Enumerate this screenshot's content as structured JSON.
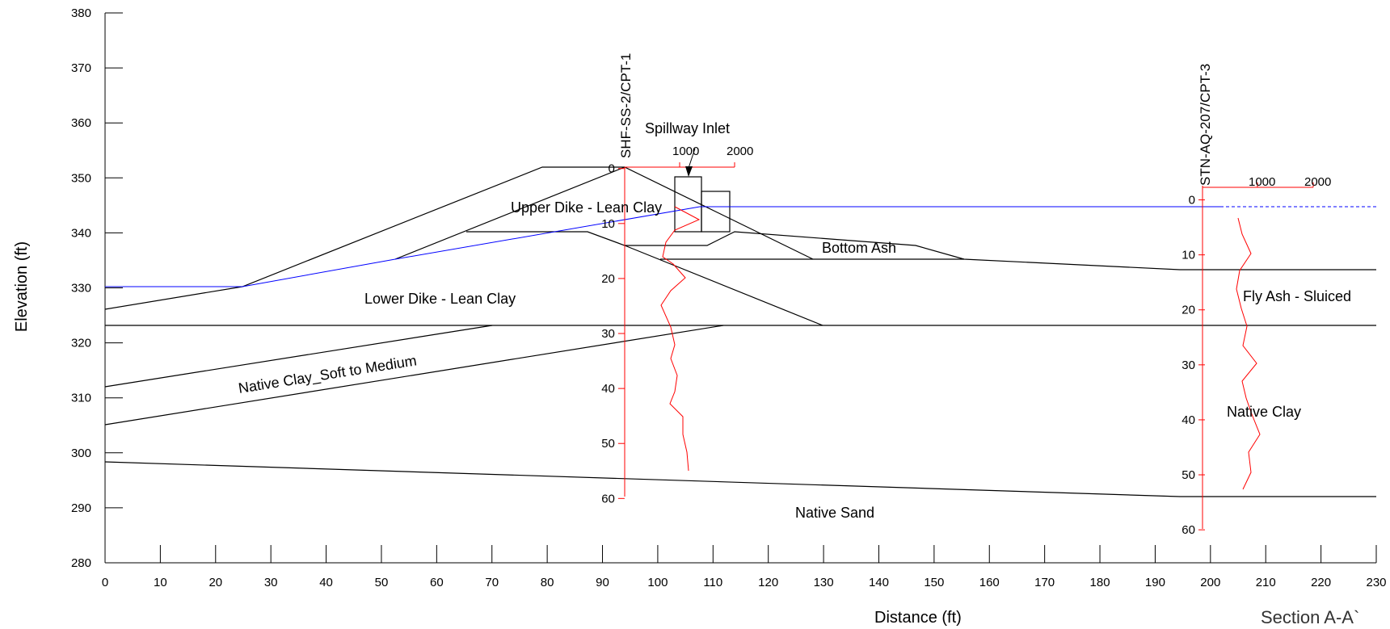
{
  "figure": {
    "section_title": "Section A-A`",
    "x_label": "Distance (ft)",
    "y_label": "Elevation (ft)",
    "x_ticks": [
      "0",
      "10",
      "20",
      "30",
      "40",
      "50",
      "60",
      "70",
      "80",
      "90",
      "100",
      "110",
      "120",
      "130",
      "140",
      "150",
      "160",
      "170",
      "180",
      "190",
      "200",
      "210",
      "220",
      "230"
    ],
    "y_ticks": [
      "280",
      "290",
      "300",
      "310",
      "320",
      "330",
      "340",
      "350",
      "360",
      "370",
      "380"
    ],
    "x_range": [
      0,
      230
    ],
    "y_range": [
      280,
      380
    ]
  },
  "labels": {
    "upper_dike": "Upper Dike - Lean Clay",
    "lower_dike": "Lower Dike - Lean Clay",
    "native_clay_soft": "Native Clay_Soft to Medium",
    "bottom_ash": "Bottom Ash",
    "spillway": "Spillway Inlet",
    "fly_ash": "Fly Ash - Sluiced",
    "native_clay": "Native Clay",
    "native_sand": "Native Sand"
  },
  "cpt1": {
    "name": "SHF-SS-2/CPT-1",
    "depth_ticks": [
      "0",
      "10",
      "20",
      "30",
      "40",
      "50",
      "60"
    ],
    "top_ticks": [
      "1000",
      "2000"
    ],
    "x_ft": 94,
    "top_elevation": 351.7
  },
  "cpt3": {
    "name": "STN-AQ-207/CPT-3",
    "depth_ticks": [
      "0",
      "10",
      "20",
      "30",
      "40",
      "50",
      "60"
    ],
    "top_ticks": [
      "1000",
      "2000"
    ],
    "x_ft": 199,
    "top_elevation": 346
  },
  "colors": {
    "boundary": "#000000",
    "water_table": "#0000ff",
    "cpt": "#ff0000"
  }
}
